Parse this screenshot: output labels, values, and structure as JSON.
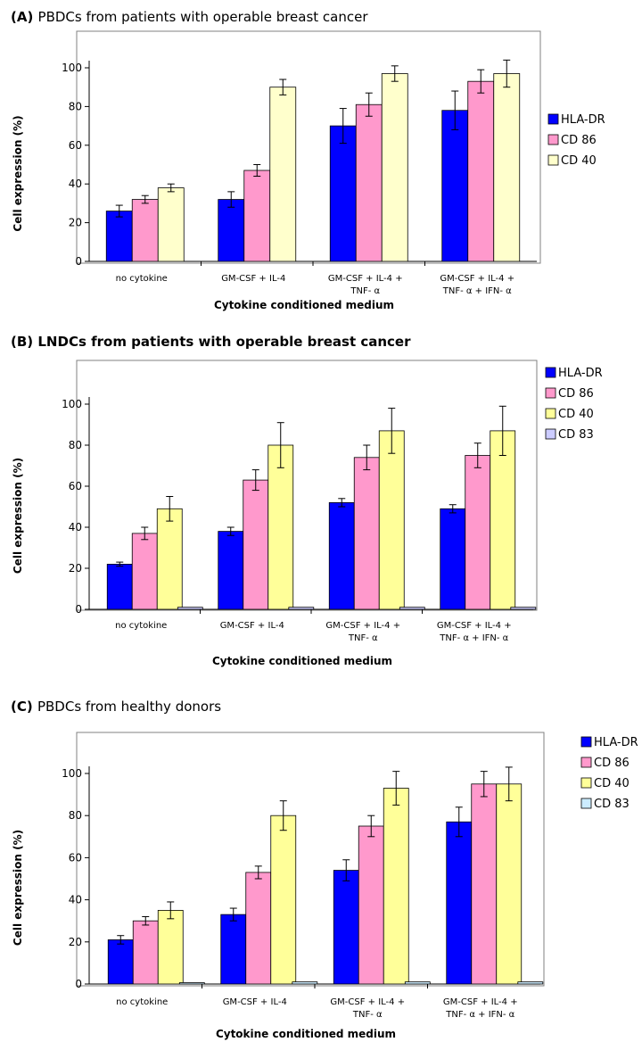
{
  "chart_data": [
    {
      "type": "bar",
      "title_prefix": "(A)",
      "title_text": "PBDCs from patients with operable breast cancer",
      "title_bold": false,
      "xlabel": "Cytokine conditioned medium",
      "ylabel": "Cell expression (%)",
      "ylim": [
        0,
        100
      ],
      "yticks": [
        0,
        20,
        40,
        60,
        80,
        100
      ],
      "categories": [
        [
          "no cytokine"
        ],
        [
          "GM-CSF + IL-4"
        ],
        [
          "GM-CSF + IL-4 +",
          "TNF- α"
        ],
        [
          "GM-CSF + IL-4 +",
          "TNF- α + IFN- α"
        ]
      ],
      "series": [
        {
          "name": "HLA-DR",
          "color": "#0000ff",
          "values": [
            26,
            32,
            70,
            78
          ],
          "errors": [
            3,
            4,
            9,
            10
          ]
        },
        {
          "name": "CD 86",
          "color": "#ff99cc",
          "values": [
            32,
            47,
            81,
            93
          ],
          "errors": [
            2,
            3,
            6,
            6
          ]
        },
        {
          "name": "CD 40",
          "color": "#ffffcc",
          "values": [
            38,
            90,
            97,
            97
          ],
          "errors": [
            2,
            4,
            4,
            7
          ]
        }
      ]
    },
    {
      "type": "bar",
      "title_prefix": "(B)",
      "title_text": "LNDCs from patients with operable breast cancer",
      "title_bold": true,
      "xlabel": "Cytokine  conditioned medium",
      "ylabel": "Cell expression (%)",
      "ylim": [
        0,
        100
      ],
      "yticks": [
        0,
        20,
        40,
        60,
        80,
        100
      ],
      "categories": [
        [
          "no cytokine"
        ],
        [
          "GM-CSF + IL-4"
        ],
        [
          "GM-CSF + IL-4 +",
          "TNF- α"
        ],
        [
          "GM-CSF + IL-4 +",
          "TNF- α + IFN- α"
        ]
      ],
      "series": [
        {
          "name": "HLA-DR",
          "color": "#0000ff",
          "values": [
            22,
            38,
            52,
            49
          ],
          "errors": [
            1,
            2,
            2,
            2
          ]
        },
        {
          "name": "CD 86",
          "color": "#ff99cc",
          "values": [
            37,
            63,
            74,
            75
          ],
          "errors": [
            3,
            5,
            6,
            6
          ]
        },
        {
          "name": "CD 40",
          "color": "#ffff99",
          "values": [
            49,
            80,
            87,
            87
          ],
          "errors": [
            6,
            11,
            11,
            12
          ]
        },
        {
          "name": "CD 83",
          "color": "#ccccff",
          "values": [
            1,
            1,
            1,
            1
          ],
          "errors": [
            0,
            0,
            0,
            0
          ]
        }
      ]
    },
    {
      "type": "bar",
      "title_prefix": "(C)",
      "title_text": "PBDCs from healthy donors",
      "title_bold": false,
      "xlabel": "Cytokine  conditioned medium",
      "ylabel": "Cell expression (%)",
      "ylim": [
        0,
        100
      ],
      "yticks": [
        0,
        20,
        40,
        60,
        80,
        100
      ],
      "categories": [
        [
          "no cytokine"
        ],
        [
          "GM-CSF + IL-4"
        ],
        [
          "GM-CSF + IL-4 +",
          "TNF- α"
        ],
        [
          "GM-CSF + IL-4 +",
          "TNF- α + IFN- α"
        ]
      ],
      "series": [
        {
          "name": "HLA-DR",
          "color": "#0000ff",
          "values": [
            21,
            33,
            54,
            77
          ],
          "errors": [
            2,
            3,
            5,
            7
          ]
        },
        {
          "name": "CD 86",
          "color": "#ff99cc",
          "values": [
            30,
            53,
            75,
            95
          ],
          "errors": [
            2,
            3,
            5,
            6
          ]
        },
        {
          "name": "CD 40",
          "color": "#ffff99",
          "values": [
            35,
            80,
            93,
            95
          ],
          "errors": [
            4,
            7,
            8,
            8
          ]
        },
        {
          "name": "CD 83",
          "color": "#ccecff",
          "values": [
            0,
            1,
            1,
            1
          ],
          "errors": [
            0,
            0,
            0,
            0
          ]
        }
      ]
    }
  ]
}
